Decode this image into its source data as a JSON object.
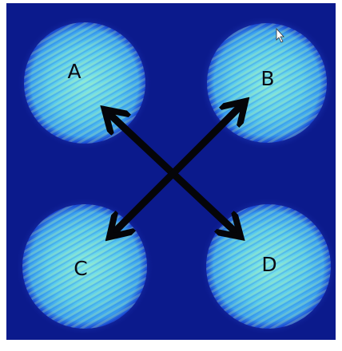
{
  "labels": [
    "A",
    "B",
    "C",
    "D"
  ]
}
